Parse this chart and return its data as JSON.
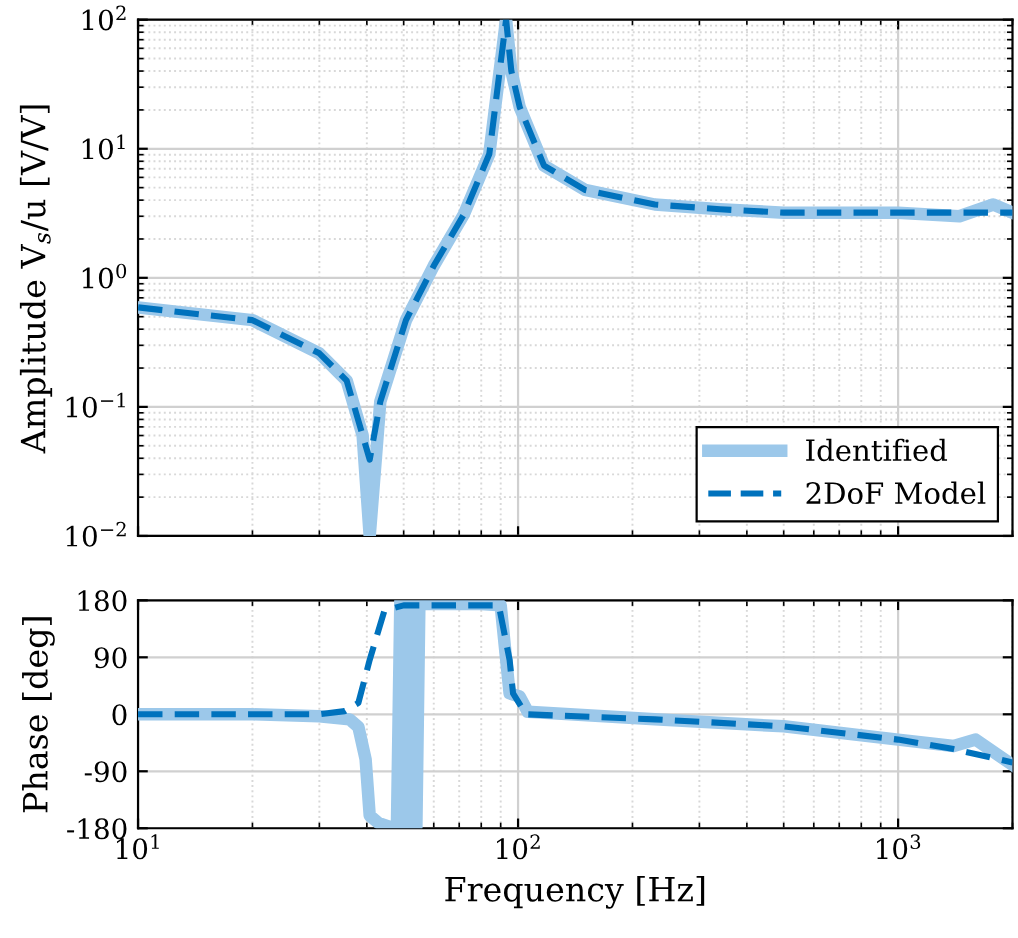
{
  "chart_data": [
    {
      "type": "line",
      "ylabel": "Amplitude V$_{s}$/u [V/V]",
      "log": "xy",
      "xlim": [
        10,
        2000
      ],
      "ylim": [
        0.01,
        100
      ],
      "xticks": [
        {
          "value": 10,
          "label": null
        },
        {
          "value": 100,
          "label": null
        },
        {
          "value": 1000,
          "label": null
        }
      ],
      "yticks": [
        {
          "value": 0.01,
          "label": "10$^{−2}$"
        },
        {
          "value": 0.1,
          "label": "10$^{−1}$"
        },
        {
          "value": 1,
          "label": "10$^{0}$"
        },
        {
          "value": 10,
          "label": "10$^{1}$"
        },
        {
          "value": 100,
          "label": "10$^{2}$"
        }
      ],
      "tick_labels": "y",
      "grid": true,
      "legend": "bottom right",
      "series": [
        {
          "name": "Identified",
          "color": "#9cc8ea",
          "line_style": "solid",
          "x": [
            10,
            20,
            30,
            35.4,
            39,
            40.7,
            43.4,
            50.7,
            60,
            72,
            84,
            91,
            93,
            96,
            101,
            117,
            150,
            229,
            340,
            500,
            1000,
            1450,
            1780,
            2000
          ],
          "values": [
            0.59,
            0.47,
            0.26,
            0.16,
            0.06,
            0.01,
            0.11,
            0.47,
            1.24,
            3.1,
            9.1,
            60,
            100,
            40,
            21,
            7.4,
            4.8,
            3.7,
            3.4,
            3.2,
            3.2,
            3.0,
            3.7,
            3.2
          ]
        },
        {
          "name": "2DoF Model",
          "color": "#0072bd",
          "line_style": "dashed",
          "x": [
            10,
            20,
            30,
            35.4,
            39,
            40.7,
            43.4,
            50.7,
            60,
            72,
            84,
            91,
            93,
            96,
            101,
            117,
            150,
            229,
            340,
            500,
            1000,
            1450,
            1780,
            2000
          ],
          "values": [
            0.59,
            0.47,
            0.26,
            0.16,
            0.06,
            0.039,
            0.11,
            0.47,
            1.24,
            3.1,
            9.1,
            60,
            100,
            40,
            21,
            7.4,
            4.8,
            3.7,
            3.4,
            3.2,
            3.2,
            3.2,
            3.2,
            3.2
          ]
        }
      ]
    },
    {
      "type": "line",
      "ylabel": "Phase [deg]",
      "xlabel": "Frequency [Hz]",
      "log": "x",
      "xlim": [
        10,
        2000
      ],
      "ylim": [
        -180,
        180
      ],
      "xticks": [
        {
          "value": 10,
          "label": "10$^{1}$"
        },
        {
          "value": 100,
          "label": "10$^{2}$"
        },
        {
          "value": 1000,
          "label": "10$^{3}$"
        }
      ],
      "yticks": [
        -180,
        -90,
        0,
        90,
        180
      ],
      "grid": true,
      "series": [
        {
          "color": "#9cc8ea",
          "line_style": "solid",
          "x": [
            10,
            20,
            30,
            36,
            38,
            39.7,
            40.7,
            43,
            46,
            48,
            49,
            50,
            51,
            52,
            53,
            54,
            55,
            56,
            60,
            80,
            90,
            95,
            101,
            106,
            229,
            500,
            1000,
            1400,
            1600,
            2000
          ],
          "values": [
            0,
            0,
            -3,
            -8,
            -20,
            -71,
            -160,
            -172,
            -178,
            -178,
            178,
            -178,
            178,
            -178,
            178,
            -178,
            178,
            174,
            174,
            174,
            172,
            33,
            28,
            4,
            -8,
            -19,
            -40,
            -50,
            -40,
            -80
          ]
        },
        {
          "color": "#0072bd",
          "line_style": "dashed",
          "x": [
            10,
            20,
            30,
            35,
            38,
            40.7,
            44.5,
            50,
            60,
            80,
            89,
            95,
            97,
            105,
            229,
            500,
            1000,
            1400,
            2000
          ],
          "values": [
            0,
            0,
            0,
            5,
            18,
            86,
            164,
            172,
            172,
            172,
            172,
            86,
            33,
            0,
            -8,
            -19,
            -40,
            -55,
            -76
          ]
        }
      ]
    }
  ]
}
